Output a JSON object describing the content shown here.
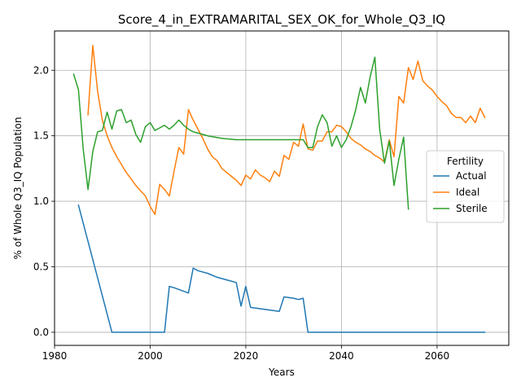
{
  "chart_data": {
    "type": "line",
    "title": "Score_4_in_EXTRAMARITAL_SEX_OK_for_Whole_Q3_IQ",
    "xlabel": "Years",
    "ylabel": "% of Whole Q3_IQ Population",
    "xlim": [
      1980,
      2075
    ],
    "ylim": [
      -0.1,
      2.3
    ],
    "xticks": [
      1980,
      2000,
      2020,
      2040,
      2060
    ],
    "yticks": [
      0.0,
      0.5,
      1.0,
      1.5,
      2.0
    ],
    "xtick_labels": [
      "1980",
      "2000",
      "2020",
      "2040",
      "2060"
    ],
    "ytick_labels": [
      "0.0",
      "0.5",
      "1.0",
      "1.5",
      "2.0"
    ],
    "grid": true,
    "legend": {
      "title": "Fertility",
      "placement": "center-right"
    },
    "series": [
      {
        "name": "Actual",
        "color": "#1f77b4",
        "x": [
          1985,
          1992,
          2003,
          2004,
          2005,
          2008,
          2009,
          2010,
          2012,
          2014,
          2016,
          2018,
          2019,
          2020,
          2021,
          2023,
          2025,
          2027,
          2028,
          2030,
          2031,
          2032,
          2033,
          2070
        ],
        "y": [
          0.97,
          0.0,
          0.0,
          0.35,
          0.34,
          0.3,
          0.49,
          0.47,
          0.45,
          0.42,
          0.4,
          0.38,
          0.2,
          0.35,
          0.19,
          0.18,
          0.17,
          0.16,
          0.27,
          0.26,
          0.25,
          0.26,
          0.0,
          0.0
        ]
      },
      {
        "name": "Ideal",
        "color": "#ff7f0e",
        "x": [
          1987,
          1988,
          1989,
          1990,
          1991,
          1992,
          1993,
          1994,
          1995,
          1996,
          1997,
          1998,
          1999,
          2000,
          2001,
          2002,
          2003,
          2004,
          2005,
          2006,
          2007,
          2008,
          2009,
          2010,
          2011,
          2012,
          2013,
          2014,
          2015,
          2016,
          2017,
          2018,
          2019,
          2020,
          2021,
          2022,
          2023,
          2024,
          2025,
          2026,
          2027,
          2028,
          2029,
          2030,
          2031,
          2032,
          2033,
          2034,
          2035,
          2036,
          2037,
          2038,
          2039,
          2040,
          2041,
          2042,
          2043,
          2044,
          2045,
          2046,
          2047,
          2048,
          2049,
          2050,
          2051,
          2052,
          2053,
          2054,
          2055,
          2056,
          2057,
          2058,
          2059,
          2060,
          2061,
          2062,
          2063,
          2064,
          2065,
          2066,
          2067,
          2068,
          2069,
          2070
        ],
        "y": [
          1.66,
          2.19,
          1.84,
          1.62,
          1.5,
          1.41,
          1.34,
          1.28,
          1.22,
          1.17,
          1.12,
          1.08,
          1.04,
          0.96,
          0.9,
          1.13,
          1.09,
          1.04,
          1.23,
          1.41,
          1.36,
          1.7,
          1.62,
          1.55,
          1.48,
          1.4,
          1.34,
          1.31,
          1.25,
          1.22,
          1.19,
          1.16,
          1.12,
          1.2,
          1.17,
          1.24,
          1.2,
          1.18,
          1.15,
          1.23,
          1.19,
          1.35,
          1.32,
          1.45,
          1.42,
          1.59,
          1.4,
          1.39,
          1.46,
          1.46,
          1.53,
          1.53,
          1.58,
          1.57,
          1.53,
          1.48,
          1.45,
          1.43,
          1.4,
          1.38,
          1.35,
          1.33,
          1.3,
          1.47,
          1.34,
          1.8,
          1.75,
          2.02,
          1.93,
          2.07,
          1.92,
          1.88,
          1.85,
          1.8,
          1.76,
          1.73,
          1.67,
          1.64,
          1.64,
          1.6,
          1.65,
          1.6,
          1.71,
          1.64
        ]
      },
      {
        "name": "Sterile",
        "color": "#2ca02c",
        "x": [
          1984,
          1985,
          1986,
          1987,
          1988,
          1989,
          1990,
          1991,
          1992,
          1993,
          1994,
          1995,
          1996,
          1997,
          1998,
          1999,
          2000,
          2001,
          2002,
          2003,
          2004,
          2005,
          2006,
          2007,
          2008,
          2009,
          2010,
          2012,
          2015,
          2018,
          2020,
          2025,
          2030,
          2032,
          2033,
          2034,
          2035,
          2036,
          2037,
          2038,
          2039,
          2040,
          2041,
          2042,
          2043,
          2044,
          2045,
          2046,
          2047,
          2048,
          2049,
          2050,
          2051,
          2052,
          2053,
          2054
        ],
        "y": [
          1.97,
          1.85,
          1.4,
          1.09,
          1.38,
          1.53,
          1.54,
          1.68,
          1.55,
          1.69,
          1.7,
          1.6,
          1.62,
          1.51,
          1.45,
          1.57,
          1.6,
          1.54,
          1.56,
          1.58,
          1.55,
          1.58,
          1.62,
          1.58,
          1.55,
          1.53,
          1.52,
          1.5,
          1.48,
          1.47,
          1.47,
          1.47,
          1.47,
          1.47,
          1.41,
          1.41,
          1.57,
          1.66,
          1.6,
          1.42,
          1.5,
          1.41,
          1.47,
          1.57,
          1.7,
          1.87,
          1.75,
          1.95,
          2.1,
          1.55,
          1.29,
          1.46,
          1.12,
          1.32,
          1.49,
          0.94
        ]
      }
    ]
  }
}
